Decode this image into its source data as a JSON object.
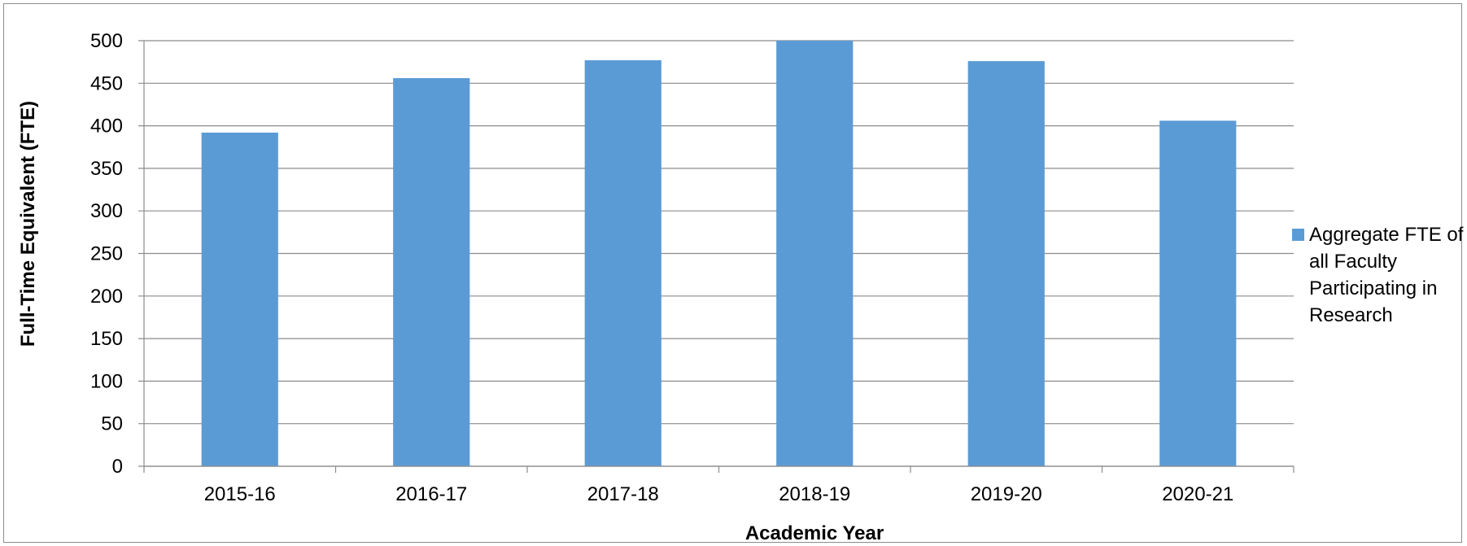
{
  "chart_data": {
    "type": "bar",
    "categories": [
      "2015-16",
      "2016-17",
      "2017-18",
      "2018-19",
      "2019-20",
      "2020-21"
    ],
    "series": [
      {
        "name": "Aggregate FTE of all Faculty Participating in Research",
        "values": [
          392,
          456,
          477,
          500,
          476,
          406
        ],
        "color": "#5b9bd5"
      }
    ],
    "xlabel": "Academic Year",
    "ylabel": "Full-Time Equivalent (FTE)",
    "ylim": [
      0,
      500
    ],
    "yticks": [
      0,
      50,
      100,
      150,
      200,
      250,
      300,
      350,
      400,
      450,
      500
    ],
    "grid": true,
    "legend_position": "right"
  }
}
